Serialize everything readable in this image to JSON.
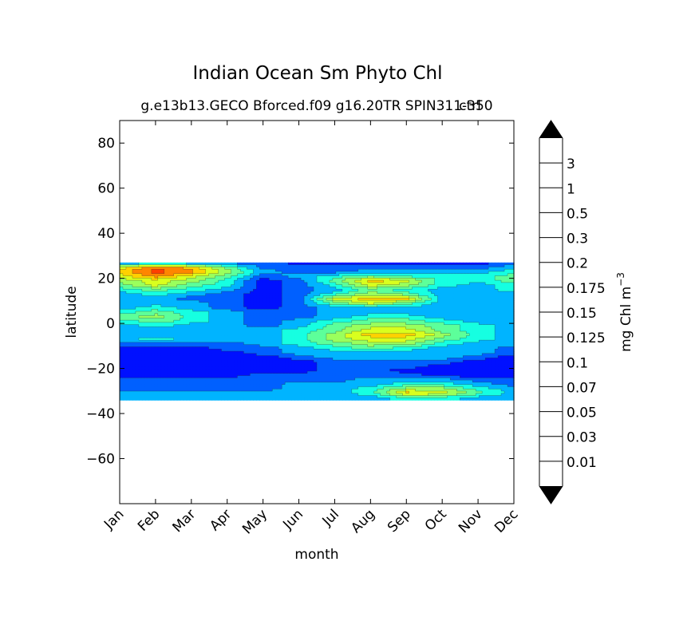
{
  "chart_data": {
    "type": "heatmap",
    "title": "Indian Ocean Sm Phyto Chl",
    "subtitle": "g.e13b13.GECO Bforced.f09 g16.20TR SPIN311-350",
    "subtitle_overlap": "ctrl",
    "xlabel": "month",
    "ylabel": "latitude",
    "xlim": [
      0,
      11
    ],
    "ylim": [
      -80,
      90
    ],
    "x_ticks": [
      {
        "v": 0,
        "label": "Jan"
      },
      {
        "v": 1,
        "label": "Feb"
      },
      {
        "v": 2,
        "label": "Mar"
      },
      {
        "v": 3,
        "label": "Apr"
      },
      {
        "v": 4,
        "label": "May"
      },
      {
        "v": 5,
        "label": "Jun"
      },
      {
        "v": 6,
        "label": "Jul"
      },
      {
        "v": 7,
        "label": "Aug"
      },
      {
        "v": 8,
        "label": "Sep"
      },
      {
        "v": 9,
        "label": "Oct"
      },
      {
        "v": 10,
        "label": "Nov"
      },
      {
        "v": 11,
        "label": "Dec"
      }
    ],
    "y_ticks": [
      {
        "v": 80,
        "label": "80"
      },
      {
        "v": 60,
        "label": "60"
      },
      {
        "v": 40,
        "label": "40"
      },
      {
        "v": 20,
        "label": "20"
      },
      {
        "v": 0,
        "label": "0"
      },
      {
        "v": -20,
        "label": "−20"
      },
      {
        "v": -40,
        "label": "−40"
      },
      {
        "v": -60,
        "label": "−60"
      }
    ],
    "data_lat_range": [
      -34,
      27
    ],
    "colorbar": {
      "label": "mg Chl m",
      "label_exponent": "−3",
      "under_color": "#000000",
      "over_color": "#000000",
      "colors": [
        "#00007f",
        "#0000cd",
        "#0010ff",
        "#0060ff",
        "#00b4ff",
        "#16ffe1",
        "#5dff9a",
        "#9aff5d",
        "#d9ff1e",
        "#ffd100",
        "#ff8600",
        "#ff4000",
        "#e00000",
        "#7f0000"
      ],
      "levels": [
        "0.01",
        "0.03",
        "0.05",
        "0.07",
        "0.1",
        "0.125",
        "0.15",
        "0.175",
        "0.2",
        "0.3",
        "0.5",
        "1",
        "3"
      ]
    },
    "field": {
      "nx": 12,
      "lats": [
        27,
        25,
        23,
        21,
        19,
        17,
        15,
        13,
        11,
        9,
        7,
        5,
        3,
        1,
        -1,
        -3,
        -5,
        -7,
        -9,
        -11,
        -13,
        -15,
        -17,
        -19,
        -21,
        -23,
        -25,
        -27,
        -29,
        -31,
        -33
      ],
      "rows": [
        [
          3,
          3,
          3,
          3,
          3,
          2,
          2,
          2,
          2,
          2,
          2,
          3
        ],
        [
          8,
          10,
          9,
          6,
          3,
          3,
          3,
          3,
          3,
          3,
          3,
          4
        ],
        [
          9,
          11,
          10,
          7,
          4,
          3,
          3,
          4,
          4,
          4,
          4,
          5
        ],
        [
          8,
          10,
          8,
          6,
          3,
          4,
          5,
          6,
          5,
          5,
          5,
          6
        ],
        [
          7,
          8,
          7,
          5,
          2,
          3,
          6,
          9,
          8,
          5,
          5,
          6
        ],
        [
          6,
          8,
          6,
          5,
          2,
          3,
          5,
          8,
          7,
          5,
          4,
          5
        ],
        [
          5,
          6,
          5,
          4,
          2,
          3,
          4,
          6,
          5,
          4,
          4,
          5
        ],
        [
          4,
          5,
          4,
          3,
          2,
          3,
          5,
          7,
          6,
          4,
          4,
          4
        ],
        [
          4,
          4,
          3,
          3,
          2,
          3,
          8,
          9,
          9,
          4,
          4,
          4
        ],
        [
          4,
          4,
          4,
          3,
          2,
          3,
          6,
          8,
          6,
          4,
          4,
          4
        ],
        [
          4,
          5,
          4,
          3,
          2,
          3,
          4,
          4,
          4,
          4,
          4,
          4
        ],
        [
          5,
          6,
          5,
          4,
          3,
          3,
          4,
          4,
          4,
          4,
          4,
          4
        ],
        [
          6,
          7,
          5,
          4,
          3,
          3,
          4,
          5,
          5,
          4,
          4,
          4
        ],
        [
          5,
          6,
          5,
          4,
          3,
          4,
          5,
          6,
          6,
          5,
          4,
          4
        ],
        [
          4,
          5,
          4,
          4,
          3,
          4,
          6,
          7,
          7,
          6,
          5,
          4
        ],
        [
          4,
          4,
          4,
          4,
          4,
          5,
          6,
          8,
          8,
          6,
          5,
          4
        ],
        [
          4,
          4,
          4,
          4,
          4,
          5,
          7,
          9,
          9,
          7,
          5,
          4
        ],
        [
          4,
          5,
          4,
          4,
          4,
          5,
          7,
          8,
          8,
          6,
          5,
          4
        ],
        [
          3,
          3,
          3,
          3,
          4,
          5,
          6,
          7,
          7,
          5,
          4,
          4
        ],
        [
          2,
          2,
          2,
          3,
          3,
          4,
          5,
          6,
          5,
          4,
          4,
          3
        ],
        [
          2,
          2,
          2,
          2,
          3,
          4,
          4,
          4,
          4,
          4,
          4,
          3
        ],
        [
          2,
          2,
          2,
          2,
          2,
          3,
          4,
          4,
          4,
          4,
          3,
          2
        ],
        [
          2,
          2,
          2,
          2,
          2,
          2,
          3,
          3,
          3,
          3,
          2,
          2
        ],
        [
          2,
          2,
          2,
          2,
          2,
          2,
          3,
          3,
          3,
          2,
          2,
          2
        ],
        [
          2,
          2,
          2,
          2,
          2,
          2,
          3,
          3,
          2,
          2,
          2,
          2
        ],
        [
          2,
          2,
          2,
          2,
          3,
          3,
          3,
          3,
          3,
          2,
          2,
          2
        ],
        [
          3,
          3,
          3,
          3,
          3,
          3,
          3,
          4,
          4,
          4,
          3,
          3
        ],
        [
          3,
          3,
          3,
          3,
          3,
          4,
          4,
          4,
          5,
          5,
          4,
          3
        ],
        [
          3,
          3,
          3,
          3,
          3,
          4,
          4,
          5,
          7,
          7,
          5,
          4
        ],
        [
          4,
          4,
          4,
          4,
          4,
          4,
          4,
          5,
          9,
          8,
          6,
          4
        ],
        [
          4,
          4,
          4,
          4,
          4,
          4,
          4,
          4,
          5,
          5,
          4,
          4
        ]
      ]
    }
  }
}
